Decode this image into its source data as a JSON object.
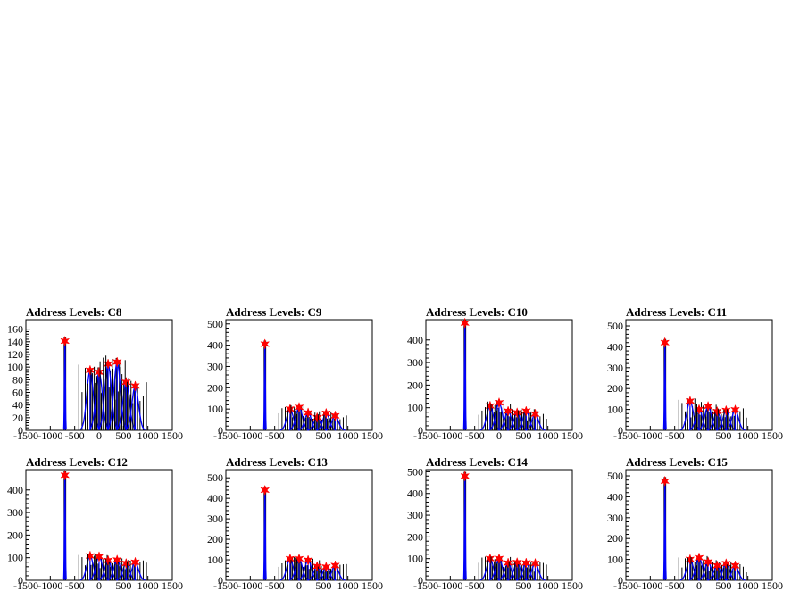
{
  "figure": {
    "x_ticks": [
      "-1500",
      "-1000",
      "-500",
      "0",
      "500",
      "1000",
      "1500"
    ],
    "colors": {
      "histogram": "#000000",
      "fit": "#0000ff",
      "marker": "#ff0000"
    }
  },
  "chart_data": [
    {
      "type": "histogram",
      "title": "Address Levels: C8",
      "xlim": [
        -1500,
        1500
      ],
      "ylim": [
        0,
        175
      ],
      "y_ticks": [
        0,
        20,
        40,
        60,
        80,
        100,
        120,
        140,
        160
      ],
      "x_ticks": [
        -1500,
        -1000,
        -500,
        0,
        500,
        1000,
        1500
      ],
      "peaks": [
        {
          "x": -700,
          "y": 141
        },
        {
          "x": -185,
          "y": 95
        },
        {
          "x": 0,
          "y": 92
        },
        {
          "x": 185,
          "y": 105
        },
        {
          "x": 370,
          "y": 108
        },
        {
          "x": 555,
          "y": 76
        },
        {
          "x": 740,
          "y": 70
        }
      ]
    },
    {
      "type": "histogram",
      "title": "Address Levels: C9",
      "xlim": [
        -1500,
        1500
      ],
      "ylim": [
        0,
        520
      ],
      "y_ticks": [
        0,
        100,
        200,
        300,
        400,
        500
      ],
      "x_ticks": [
        -1500,
        -1000,
        -500,
        0,
        500,
        1000,
        1500
      ],
      "peaks": [
        {
          "x": -700,
          "y": 405
        },
        {
          "x": -185,
          "y": 100
        },
        {
          "x": 0,
          "y": 108
        },
        {
          "x": 185,
          "y": 82
        },
        {
          "x": 370,
          "y": 60
        },
        {
          "x": 555,
          "y": 80
        },
        {
          "x": 740,
          "y": 68
        }
      ]
    },
    {
      "type": "histogram",
      "title": "Address Levels: C10",
      "xlim": [
        -1500,
        1500
      ],
      "ylim": [
        0,
        490
      ],
      "y_ticks": [
        0,
        100,
        200,
        300,
        400
      ],
      "x_ticks": [
        -1500,
        -1000,
        -500,
        0,
        500,
        1000,
        1500
      ],
      "peaks": [
        {
          "x": -700,
          "y": 475
        },
        {
          "x": -185,
          "y": 108
        },
        {
          "x": 0,
          "y": 122
        },
        {
          "x": 185,
          "y": 85
        },
        {
          "x": 370,
          "y": 78
        },
        {
          "x": 555,
          "y": 85
        },
        {
          "x": 740,
          "y": 72
        }
      ]
    },
    {
      "type": "histogram",
      "title": "Address Levels: C11",
      "xlim": [
        -1500,
        1500
      ],
      "ylim": [
        0,
        530
      ],
      "y_ticks": [
        0,
        100,
        200,
        300,
        400,
        500
      ],
      "x_ticks": [
        -1500,
        -1000,
        -500,
        0,
        500,
        1000,
        1500
      ],
      "peaks": [
        {
          "x": -700,
          "y": 420
        },
        {
          "x": -185,
          "y": 140
        },
        {
          "x": 0,
          "y": 100
        },
        {
          "x": 185,
          "y": 115
        },
        {
          "x": 370,
          "y": 90
        },
        {
          "x": 555,
          "y": 95
        },
        {
          "x": 740,
          "y": 98
        }
      ]
    },
    {
      "type": "histogram",
      "title": "Address Levels: C12",
      "xlim": [
        -1500,
        1500
      ],
      "ylim": [
        0,
        490
      ],
      "y_ticks": [
        0,
        100,
        200,
        300,
        400
      ],
      "x_ticks": [
        -1500,
        -1000,
        -500,
        0,
        500,
        1000,
        1500
      ],
      "peaks": [
        {
          "x": -700,
          "y": 465
        },
        {
          "x": -185,
          "y": 108
        },
        {
          "x": 0,
          "y": 105
        },
        {
          "x": 185,
          "y": 88
        },
        {
          "x": 370,
          "y": 90
        },
        {
          "x": 555,
          "y": 75
        },
        {
          "x": 740,
          "y": 80
        }
      ]
    },
    {
      "type": "histogram",
      "title": "Address Levels: C13",
      "xlim": [
        -1500,
        1500
      ],
      "ylim": [
        0,
        540
      ],
      "y_ticks": [
        0,
        100,
        200,
        300,
        400,
        500
      ],
      "x_ticks": [
        -1500,
        -1000,
        -500,
        0,
        500,
        1000,
        1500
      ],
      "peaks": [
        {
          "x": -700,
          "y": 440
        },
        {
          "x": -185,
          "y": 105
        },
        {
          "x": 0,
          "y": 105
        },
        {
          "x": 185,
          "y": 98
        },
        {
          "x": 370,
          "y": 68
        },
        {
          "x": 555,
          "y": 65
        },
        {
          "x": 740,
          "y": 72
        }
      ]
    },
    {
      "type": "histogram",
      "title": "Address Levels: C14",
      "xlim": [
        -1500,
        1500
      ],
      "ylim": [
        0,
        510
      ],
      "y_ticks": [
        0,
        100,
        200,
        300,
        400,
        500
      ],
      "x_ticks": [
        -1500,
        -1000,
        -500,
        0,
        500,
        1000,
        1500
      ],
      "peaks": [
        {
          "x": -700,
          "y": 480
        },
        {
          "x": -185,
          "y": 100
        },
        {
          "x": 0,
          "y": 100
        },
        {
          "x": 185,
          "y": 80
        },
        {
          "x": 370,
          "y": 82
        },
        {
          "x": 555,
          "y": 80
        },
        {
          "x": 740,
          "y": 78
        }
      ]
    },
    {
      "type": "histogram",
      "title": "Address Levels: C15",
      "xlim": [
        -1500,
        1500
      ],
      "ylim": [
        0,
        530
      ],
      "y_ticks": [
        0,
        100,
        200,
        300,
        400,
        500
      ],
      "x_ticks": [
        -1500,
        -1000,
        -500,
        0,
        500,
        1000,
        1500
      ],
      "peaks": [
        {
          "x": -700,
          "y": 475
        },
        {
          "x": -185,
          "y": 100
        },
        {
          "x": 0,
          "y": 108
        },
        {
          "x": 185,
          "y": 88
        },
        {
          "x": 370,
          "y": 70
        },
        {
          "x": 555,
          "y": 80
        },
        {
          "x": 740,
          "y": 70
        }
      ]
    }
  ]
}
